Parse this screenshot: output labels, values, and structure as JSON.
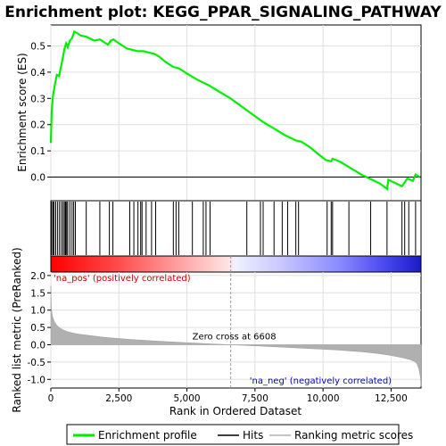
{
  "chart_data": {
    "type": "line",
    "title": "Enrichment plot: KEGG_PPAR_SIGNALING_PATHWAY",
    "xlabel": "Rank in Ordered Dataset",
    "top_ylabel": "Enrichment score (ES)",
    "bottom_ylabel": "Ranked list metric (PreRanked)",
    "xlim": [
      0,
      13600
    ],
    "x_ticks": [
      0,
      2500,
      5000,
      7500,
      10000,
      12500
    ],
    "x_tick_labels": [
      "0",
      "2,500",
      "5,000",
      "7,500",
      "10,000",
      "12,500"
    ],
    "es_ylim": [
      -0.09,
      0.58
    ],
    "es_ticks": [
      0.0,
      0.1,
      0.2,
      0.3,
      0.4,
      0.5
    ],
    "es_tick_labels": [
      "0.0",
      "0.1",
      "0.2",
      "0.3",
      "0.4",
      "0.5"
    ],
    "metric_ylim": [
      -1.25,
      2.1
    ],
    "metric_ticks": [
      -1.0,
      -0.5,
      0.0,
      0.5,
      1.0,
      1.5,
      2.0
    ],
    "metric_tick_labels": [
      "-1.0",
      "-0.5",
      "0.0",
      "0.5",
      "1.0",
      "1.5",
      "2.0"
    ],
    "enrichment_profile": {
      "x": [
        0,
        30,
        80,
        150,
        220,
        300,
        380,
        440,
        500,
        560,
        620,
        700,
        780,
        860,
        950,
        1100,
        1300,
        1600,
        1800,
        2100,
        2200,
        2300,
        2500,
        2800,
        3000,
        3200,
        3400,
        3600,
        3800,
        4000,
        4200,
        4500,
        4700,
        5000,
        5400,
        5800,
        6200,
        6600,
        7000,
        7400,
        7800,
        8200,
        8600,
        9000,
        9200,
        9500,
        9800,
        10100,
        10300,
        10350,
        10600,
        11000,
        11400,
        11800,
        12100,
        12350,
        12400,
        12700,
        12900,
        13000,
        13100,
        13300,
        13400,
        13550
      ],
      "y": [
        0.13,
        0.25,
        0.31,
        0.355,
        0.39,
        0.385,
        0.425,
        0.455,
        0.49,
        0.51,
        0.495,
        0.52,
        0.53,
        0.555,
        0.55,
        0.54,
        0.535,
        0.52,
        0.525,
        0.505,
        0.52,
        0.525,
        0.51,
        0.49,
        0.485,
        0.48,
        0.48,
        0.475,
        0.47,
        0.458,
        0.44,
        0.42,
        0.415,
        0.395,
        0.37,
        0.35,
        0.325,
        0.3,
        0.27,
        0.24,
        0.21,
        0.185,
        0.16,
        0.14,
        0.135,
        0.115,
        0.09,
        0.065,
        0.06,
        0.07,
        0.06,
        0.035,
        0.01,
        -0.01,
        -0.025,
        -0.045,
        -0.01,
        -0.025,
        -0.035,
        -0.02,
        -0.005,
        -0.015,
        0.01,
        0.0
      ]
    },
    "hits": [
      30,
      80,
      120,
      180,
      250,
      320,
      390,
      450,
      500,
      540,
      580,
      620,
      700,
      780,
      840,
      900,
      1300,
      1800,
      2150,
      2280,
      2900,
      3050,
      3200,
      3300,
      3350,
      3500,
      3700,
      3850,
      4500,
      4600,
      4700,
      5200,
      5600,
      5700,
      5850,
      7200,
      7700,
      7800,
      8200,
      8500,
      8700,
      9000,
      9100,
      10150,
      10300,
      10350,
      10950,
      11750,
      12350,
      12900,
      13000,
      13150,
      13400
    ],
    "zero_cross_rank": 6608,
    "metric_curve": {
      "x": [
        0,
        20,
        60,
        120,
        200,
        300,
        450,
        600,
        800,
        1000,
        1500,
        2000,
        3000,
        4000,
        5000,
        6000,
        6608,
        7500,
        8500,
        9500,
        10500,
        11500,
        12000,
        12500,
        12900,
        13200,
        13350,
        13450,
        13520,
        13580,
        13600
      ],
      "y": [
        1.7,
        1.05,
        0.82,
        0.68,
        0.58,
        0.5,
        0.43,
        0.38,
        0.34,
        0.31,
        0.26,
        0.21,
        0.15,
        0.1,
        0.06,
        0.02,
        0.0,
        -0.03,
        -0.07,
        -0.11,
        -0.15,
        -0.21,
        -0.25,
        -0.31,
        -0.37,
        -0.43,
        -0.48,
        -0.55,
        -0.7,
        -0.95,
        -1.2
      ]
    },
    "annotations": {
      "pos_label": "'na_pos' (positively correlated)",
      "neg_label": "'na_neg' (negatively correlated)",
      "zero_cross_label": "Zero cross at 6608"
    },
    "legend": {
      "placement": "bottom",
      "entries": [
        "Enrichment profile",
        "Hits",
        "Ranking metric scores"
      ]
    },
    "colors": {
      "profile": "#00ee00",
      "hits": "#000000",
      "metric_fill": "#b0b0b0",
      "pos_text": "#cc0000",
      "neg_text": "#0000cc",
      "grid": "#e0e0e0"
    }
  }
}
